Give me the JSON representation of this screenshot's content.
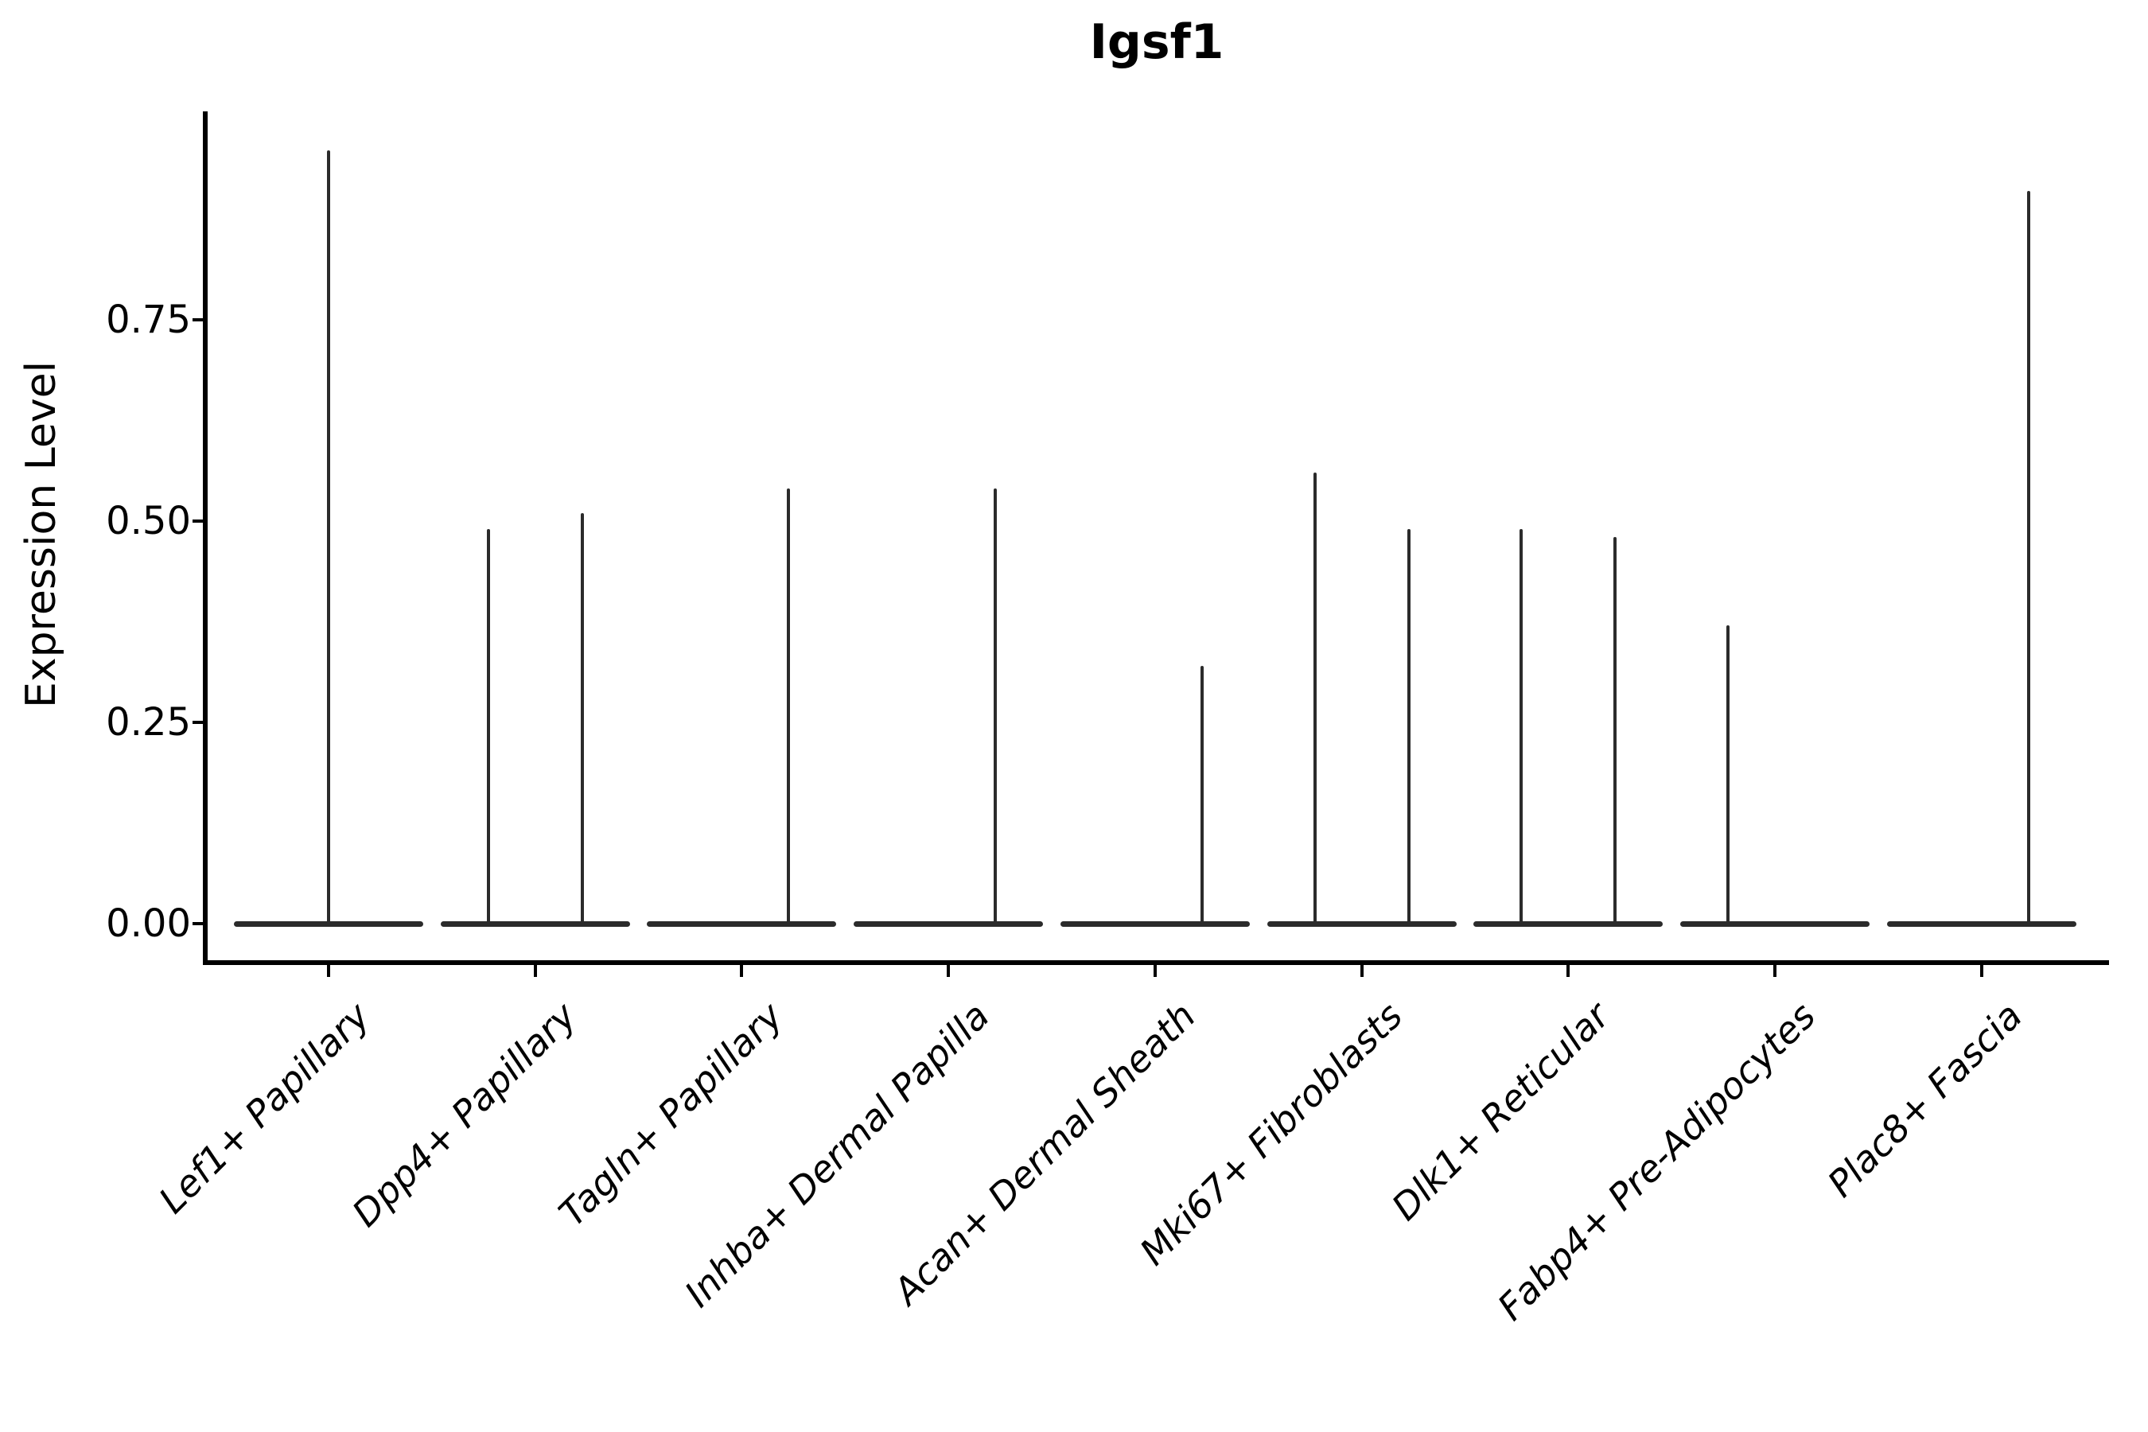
{
  "figure": {
    "title": "Igsf1",
    "ylabel": "Expression Level"
  },
  "chart_data": {
    "type": "violin",
    "title": "Igsf1",
    "xlabel": "",
    "ylabel": "Expression Level",
    "ylim": [
      -0.05,
      1.01
    ],
    "yticks": [
      "0.00",
      "0.25",
      "0.50",
      "0.75"
    ],
    "grid": false,
    "legend": "none",
    "violin_color": "#2b2b2b",
    "axis_color": "#000000",
    "categories": [
      "Lef1+ Papillary",
      "Dpp4+ Papillary",
      "Tagln+ Papillary",
      "Inhba+ Dermal Papilla",
      "Acan+ Dermal Sheath",
      "Mki67+ Fibroblasts",
      "Dlk1+ Reticular",
      "Fabp4+ Pre-Adipocytes",
      "Plac8+ Fascia"
    ],
    "violins": [
      {
        "category": "Lef1+ Papillary",
        "spikes": [
          {
            "pos": "center",
            "max": 0.96
          }
        ]
      },
      {
        "category": "Dpp4+ Papillary",
        "spikes": [
          {
            "pos": "left",
            "max": 0.49
          },
          {
            "pos": "right",
            "max": 0.51
          }
        ]
      },
      {
        "category": "Tagln+ Papillary",
        "spikes": [
          {
            "pos": "right",
            "max": 0.54
          }
        ]
      },
      {
        "category": "Inhba+ Dermal Papilla",
        "spikes": [
          {
            "pos": "right",
            "max": 0.54
          }
        ]
      },
      {
        "category": "Acan+ Dermal Sheath",
        "spikes": [
          {
            "pos": "right",
            "max": 0.32
          }
        ]
      },
      {
        "category": "Mki67+ Fibroblasts",
        "spikes": [
          {
            "pos": "left",
            "max": 0.56
          },
          {
            "pos": "right",
            "max": 0.49
          }
        ]
      },
      {
        "category": "Dlk1+ Reticular",
        "spikes": [
          {
            "pos": "left",
            "max": 0.49
          },
          {
            "pos": "right",
            "max": 0.48
          }
        ]
      },
      {
        "category": "Fabp4+ Pre-Adipocytes",
        "spikes": [
          {
            "pos": "left",
            "max": 0.37
          }
        ]
      },
      {
        "category": "Plac8+ Fascia",
        "spikes": [
          {
            "pos": "right",
            "max": 0.91
          }
        ]
      }
    ]
  }
}
